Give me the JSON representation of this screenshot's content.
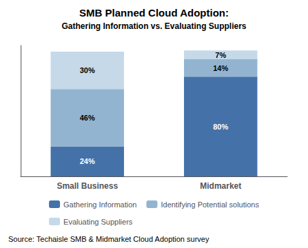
{
  "chart_data": {
    "type": "bar",
    "title": "SMB Planned Cloud Adoption:",
    "subtitle": "Gathering Information vs. Evaluating Suppliers",
    "categories": [
      "Small Business",
      "Midmarket"
    ],
    "series": [
      {
        "name": "Gathering Information",
        "color": "#4472A8",
        "values": [
          24,
          80
        ],
        "value_labels": [
          "24%",
          "80%"
        ]
      },
      {
        "name": "Identifying Potential solutions",
        "color": "#92B4D0",
        "values": [
          46,
          14
        ],
        "value_labels": [
          "46%",
          "14%"
        ]
      },
      {
        "name": "Evaluating Suppliers",
        "color": "#C5D9E8",
        "values": [
          30,
          7
        ],
        "value_labels": [
          "30%",
          "7%"
        ]
      }
    ],
    "stacked": true,
    "data_labels": true,
    "ylim": [
      0,
      105
    ],
    "yticks": [],
    "tick_labels": "x",
    "grid": false,
    "legend": "bottom",
    "annotations": [
      "Source: Techaisle SMB & Midmarket Cloud Adoption survey"
    ]
  }
}
